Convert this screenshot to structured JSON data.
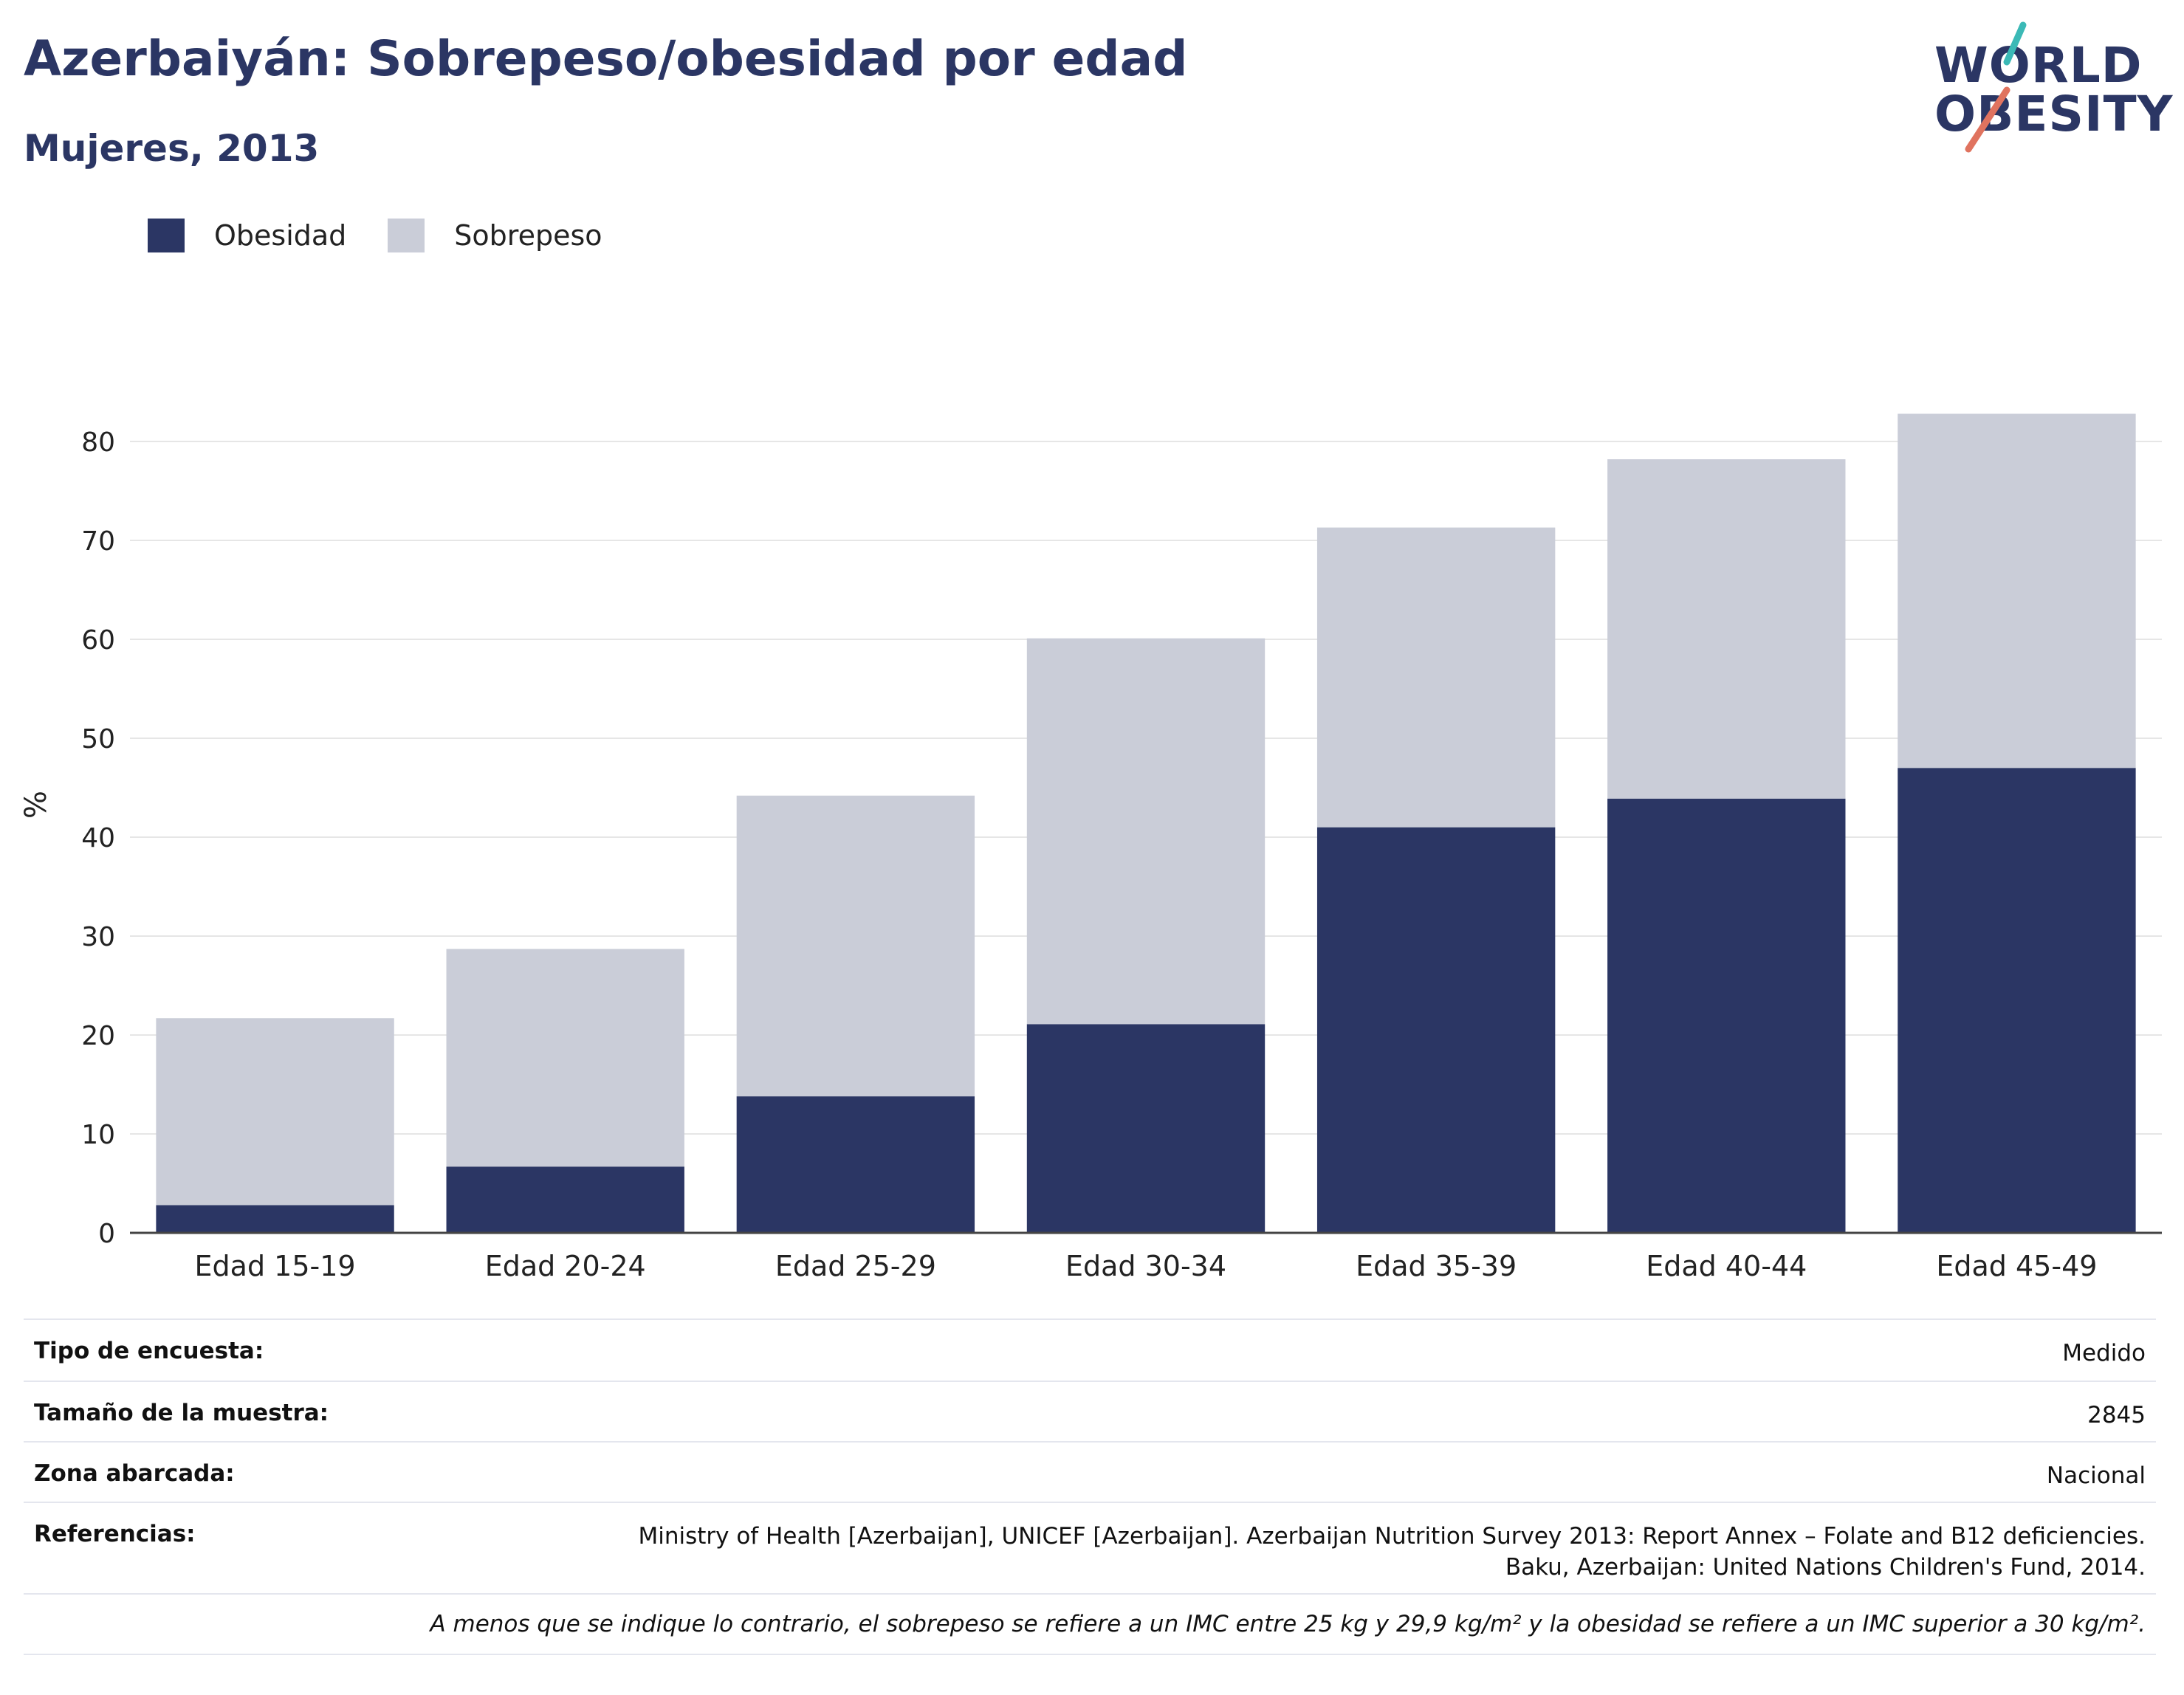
{
  "header": {
    "title": "Azerbaiyán: Sobrepeso/obesidad por edad",
    "subtitle": "Mujeres, 2013"
  },
  "logo": {
    "line1": "WORLD",
    "line2": "OBESITY"
  },
  "colors": {
    "obesity": "#2b3664",
    "overweight": "#cacdd8",
    "title": "#2b3664",
    "logo_teal": "#3bb9b6",
    "logo_coral": "#e0735f"
  },
  "chart_data": {
    "type": "bar",
    "stacked": true,
    "title": "Azerbaiyán: Sobrepeso/obesidad por edad",
    "subtitle": "Mujeres, 2013",
    "ylabel": "%",
    "xlabel": "",
    "ylim": [
      0,
      85
    ],
    "yticks": [
      0,
      10,
      20,
      30,
      40,
      50,
      60,
      70,
      80
    ],
    "grid": true,
    "legend_position": "top-left",
    "categories": [
      "Edad 15-19",
      "Edad 20-24",
      "Edad 25-29",
      "Edad 30-34",
      "Edad 35-39",
      "Edad 40-44",
      "Edad 45-49"
    ],
    "series": [
      {
        "name": "Obesidad",
        "values": [
          2.8,
          6.7,
          13.8,
          21.1,
          41.0,
          43.9,
          47.0
        ]
      },
      {
        "name": "Sobrepeso",
        "values": [
          18.9,
          22.0,
          30.4,
          39.0,
          30.3,
          34.3,
          35.8
        ]
      }
    ]
  },
  "info": {
    "survey_type": {
      "label": "Tipo de encuesta:",
      "value": "Medido"
    },
    "sample_size": {
      "label": "Tamaño de la muestra:",
      "value": "2845"
    },
    "area": {
      "label": "Zona abarcada:",
      "value": "Nacional"
    },
    "references": {
      "label": "Referencias:",
      "value_line1": "Ministry of Health [Azerbaijan], UNICEF [Azerbaijan]. Azerbaijan Nutrition Survey 2013: Report Annex – Folate and B12 deficiencies.",
      "value_line2": "Baku, Azerbaijan: United Nations Children's Fund, 2014."
    },
    "note": "A menos que se indique lo contrario, el sobrepeso se refiere a un IMC entre 25 kg y 29,9 kg/m² y la obesidad se refiere a un IMC superior a 30 kg/m²."
  }
}
